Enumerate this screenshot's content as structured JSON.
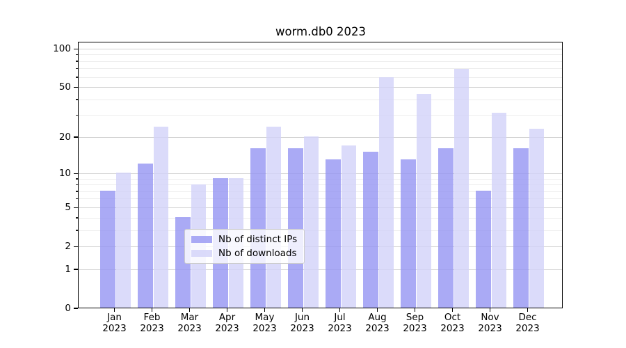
{
  "title": "worm.db0 2023",
  "chart_data": {
    "type": "bar",
    "title": "worm.db0 2023",
    "categories": [
      "Jan 2023",
      "Feb 2023",
      "Mar 2023",
      "Apr 2023",
      "May 2023",
      "Jun 2023",
      "Jul 2023",
      "Aug 2023",
      "Sep 2023",
      "Oct 2023",
      "Nov 2023",
      "Dec 2023"
    ],
    "x_tick_months": [
      "Jan",
      "Feb",
      "Mar",
      "Apr",
      "May",
      "Jun",
      "Jul",
      "Aug",
      "Sep",
      "Oct",
      "Nov",
      "Dec"
    ],
    "x_tick_year": "2023",
    "series": [
      {
        "name": "Nb of distinct IPs",
        "color": "rgba(149,149,243,0.8)",
        "values": [
          7,
          12,
          4,
          9,
          16,
          16,
          13,
          15,
          13,
          16,
          7,
          16
        ]
      },
      {
        "name": "Nb of downloads",
        "color": "rgba(210,210,249,0.8)",
        "values": [
          10,
          24,
          8,
          9,
          24,
          20,
          17,
          59,
          44,
          69,
          31,
          23
        ]
      }
    ],
    "y_scale": "log10(1+v)",
    "ylim": [
      0,
      113
    ],
    "y_major_ticks": [
      0,
      1,
      2,
      5,
      10,
      20,
      50,
      100
    ],
    "y_minor_ticks": [
      3,
      4,
      6,
      7,
      8,
      9,
      30,
      40,
      60,
      70,
      80,
      90
    ],
    "grid": "on",
    "legend_position": "lower center inside plot"
  },
  "colors": {
    "bar_distinct_ips": "rgba(149,149,243,0.8)",
    "bar_downloads": "rgba(210,210,249,0.8)",
    "grid_major": "#d2d2d2",
    "grid_minor": "#ececec",
    "spine": "#000000",
    "legend_border": "#cccccc"
  }
}
